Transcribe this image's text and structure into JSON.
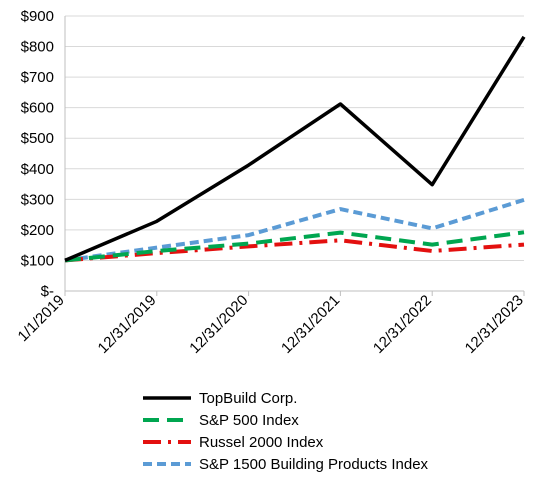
{
  "chart_data": {
    "type": "line",
    "title": "",
    "xlabel": "",
    "ylabel": "",
    "categories": [
      "1/1/2019",
      "12/31/2019",
      "12/31/2020",
      "12/31/2021",
      "12/31/2022",
      "12/31/2023"
    ],
    "y_ticks": [
      "$-",
      "$100",
      "$200",
      "$300",
      "$400",
      "$500",
      "$600",
      "$700",
      "$800",
      "$900"
    ],
    "ylim": [
      0,
      900
    ],
    "grid": true,
    "legend_position": "bottom",
    "series": [
      {
        "name": "TopBuild Corp.",
        "values": [
          100,
          228,
          412,
          612,
          348,
          832
        ],
        "color": "#000000",
        "style": "solid"
      },
      {
        "name": "S&P 500 Index",
        "values": [
          100,
          131,
          155,
          191,
          152,
          192
        ],
        "color": "#00a650",
        "style": "dash"
      },
      {
        "name": "Russel 2000 Index",
        "values": [
          100,
          124,
          146,
          166,
          131,
          152
        ],
        "color": "#e3100f",
        "style": "dashdot"
      },
      {
        "name": "S&P 1500 Building Products Index",
        "values": [
          100,
          142,
          183,
          268,
          205,
          298
        ],
        "color": "#5b9bd5",
        "style": "dot"
      }
    ]
  }
}
